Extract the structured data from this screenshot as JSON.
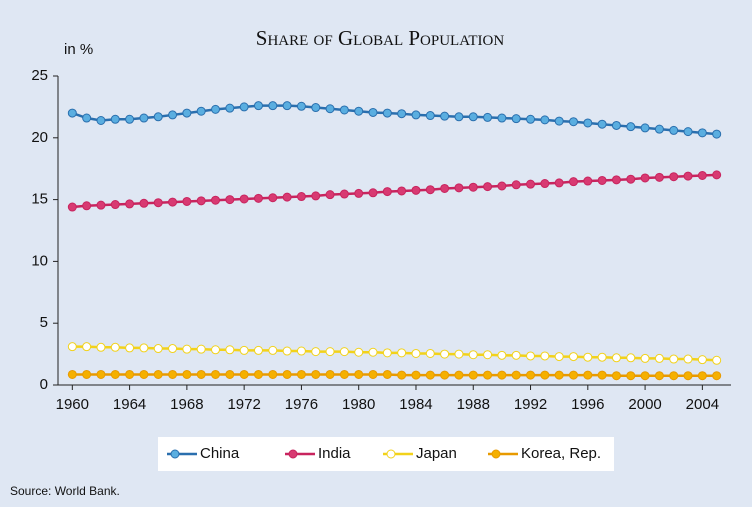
{
  "chart_data": {
    "type": "line",
    "title": "Share of Global Population",
    "y_label": "in %",
    "source": "Source: World Bank.",
    "x": [
      1960,
      1961,
      1962,
      1963,
      1964,
      1965,
      1966,
      1967,
      1968,
      1969,
      1970,
      1971,
      1972,
      1973,
      1974,
      1975,
      1976,
      1977,
      1978,
      1979,
      1980,
      1981,
      1982,
      1983,
      1984,
      1985,
      1986,
      1987,
      1988,
      1989,
      1990,
      1991,
      1992,
      1993,
      1994,
      1995,
      1996,
      1997,
      1998,
      1999,
      2000,
      2001,
      2002,
      2003,
      2004,
      2005
    ],
    "xlim": [
      1959,
      2006
    ],
    "xticks": [
      1960,
      1964,
      1968,
      1972,
      1976,
      1980,
      1984,
      1988,
      1992,
      1996,
      2000,
      2004
    ],
    "ylim": [
      0,
      25
    ],
    "yticks": [
      0,
      5,
      10,
      15,
      20,
      25
    ],
    "series": [
      {
        "name": "China",
        "color": "#2a6fae",
        "marker_fill": "#5aaee0",
        "values": [
          22.0,
          21.6,
          21.4,
          21.5,
          21.5,
          21.6,
          21.7,
          21.85,
          22.0,
          22.15,
          22.3,
          22.4,
          22.5,
          22.6,
          22.6,
          22.6,
          22.55,
          22.45,
          22.35,
          22.25,
          22.15,
          22.05,
          22.0,
          21.95,
          21.85,
          21.8,
          21.75,
          21.7,
          21.7,
          21.65,
          21.6,
          21.55,
          21.5,
          21.45,
          21.35,
          21.3,
          21.2,
          21.1,
          21.0,
          20.9,
          20.8,
          20.7,
          20.6,
          20.5,
          20.4,
          20.3
        ]
      },
      {
        "name": "India",
        "color": "#c8245e",
        "marker_fill": "#d83a72",
        "values": [
          14.4,
          14.5,
          14.55,
          14.6,
          14.65,
          14.7,
          14.75,
          14.8,
          14.85,
          14.9,
          14.95,
          15.0,
          15.05,
          15.1,
          15.15,
          15.2,
          15.25,
          15.3,
          15.4,
          15.45,
          15.5,
          15.55,
          15.65,
          15.7,
          15.75,
          15.8,
          15.9,
          15.95,
          16.0,
          16.05,
          16.1,
          16.2,
          16.25,
          16.3,
          16.35,
          16.45,
          16.5,
          16.55,
          16.6,
          16.65,
          16.75,
          16.8,
          16.85,
          16.9,
          16.95,
          17.0
        ]
      },
      {
        "name": "Japan",
        "color": "#f2d21a",
        "marker_fill": "#ffffff",
        "values": [
          3.1,
          3.1,
          3.05,
          3.05,
          3.0,
          3.0,
          2.95,
          2.95,
          2.9,
          2.9,
          2.85,
          2.85,
          2.8,
          2.8,
          2.8,
          2.75,
          2.75,
          2.7,
          2.7,
          2.7,
          2.65,
          2.65,
          2.6,
          2.6,
          2.55,
          2.55,
          2.5,
          2.5,
          2.45,
          2.45,
          2.4,
          2.4,
          2.35,
          2.35,
          2.3,
          2.3,
          2.25,
          2.25,
          2.2,
          2.2,
          2.15,
          2.15,
          2.1,
          2.1,
          2.05,
          2.0
        ]
      },
      {
        "name": "Korea, Rep.",
        "color": "#e89a00",
        "marker_fill": "#f5b000",
        "values": [
          0.85,
          0.85,
          0.85,
          0.85,
          0.85,
          0.85,
          0.85,
          0.85,
          0.85,
          0.85,
          0.85,
          0.85,
          0.85,
          0.85,
          0.85,
          0.85,
          0.85,
          0.85,
          0.85,
          0.85,
          0.85,
          0.85,
          0.85,
          0.8,
          0.8,
          0.8,
          0.8,
          0.8,
          0.8,
          0.8,
          0.8,
          0.8,
          0.8,
          0.8,
          0.8,
          0.8,
          0.8,
          0.8,
          0.75,
          0.75,
          0.75,
          0.75,
          0.75,
          0.75,
          0.75,
          0.75
        ]
      }
    ]
  }
}
